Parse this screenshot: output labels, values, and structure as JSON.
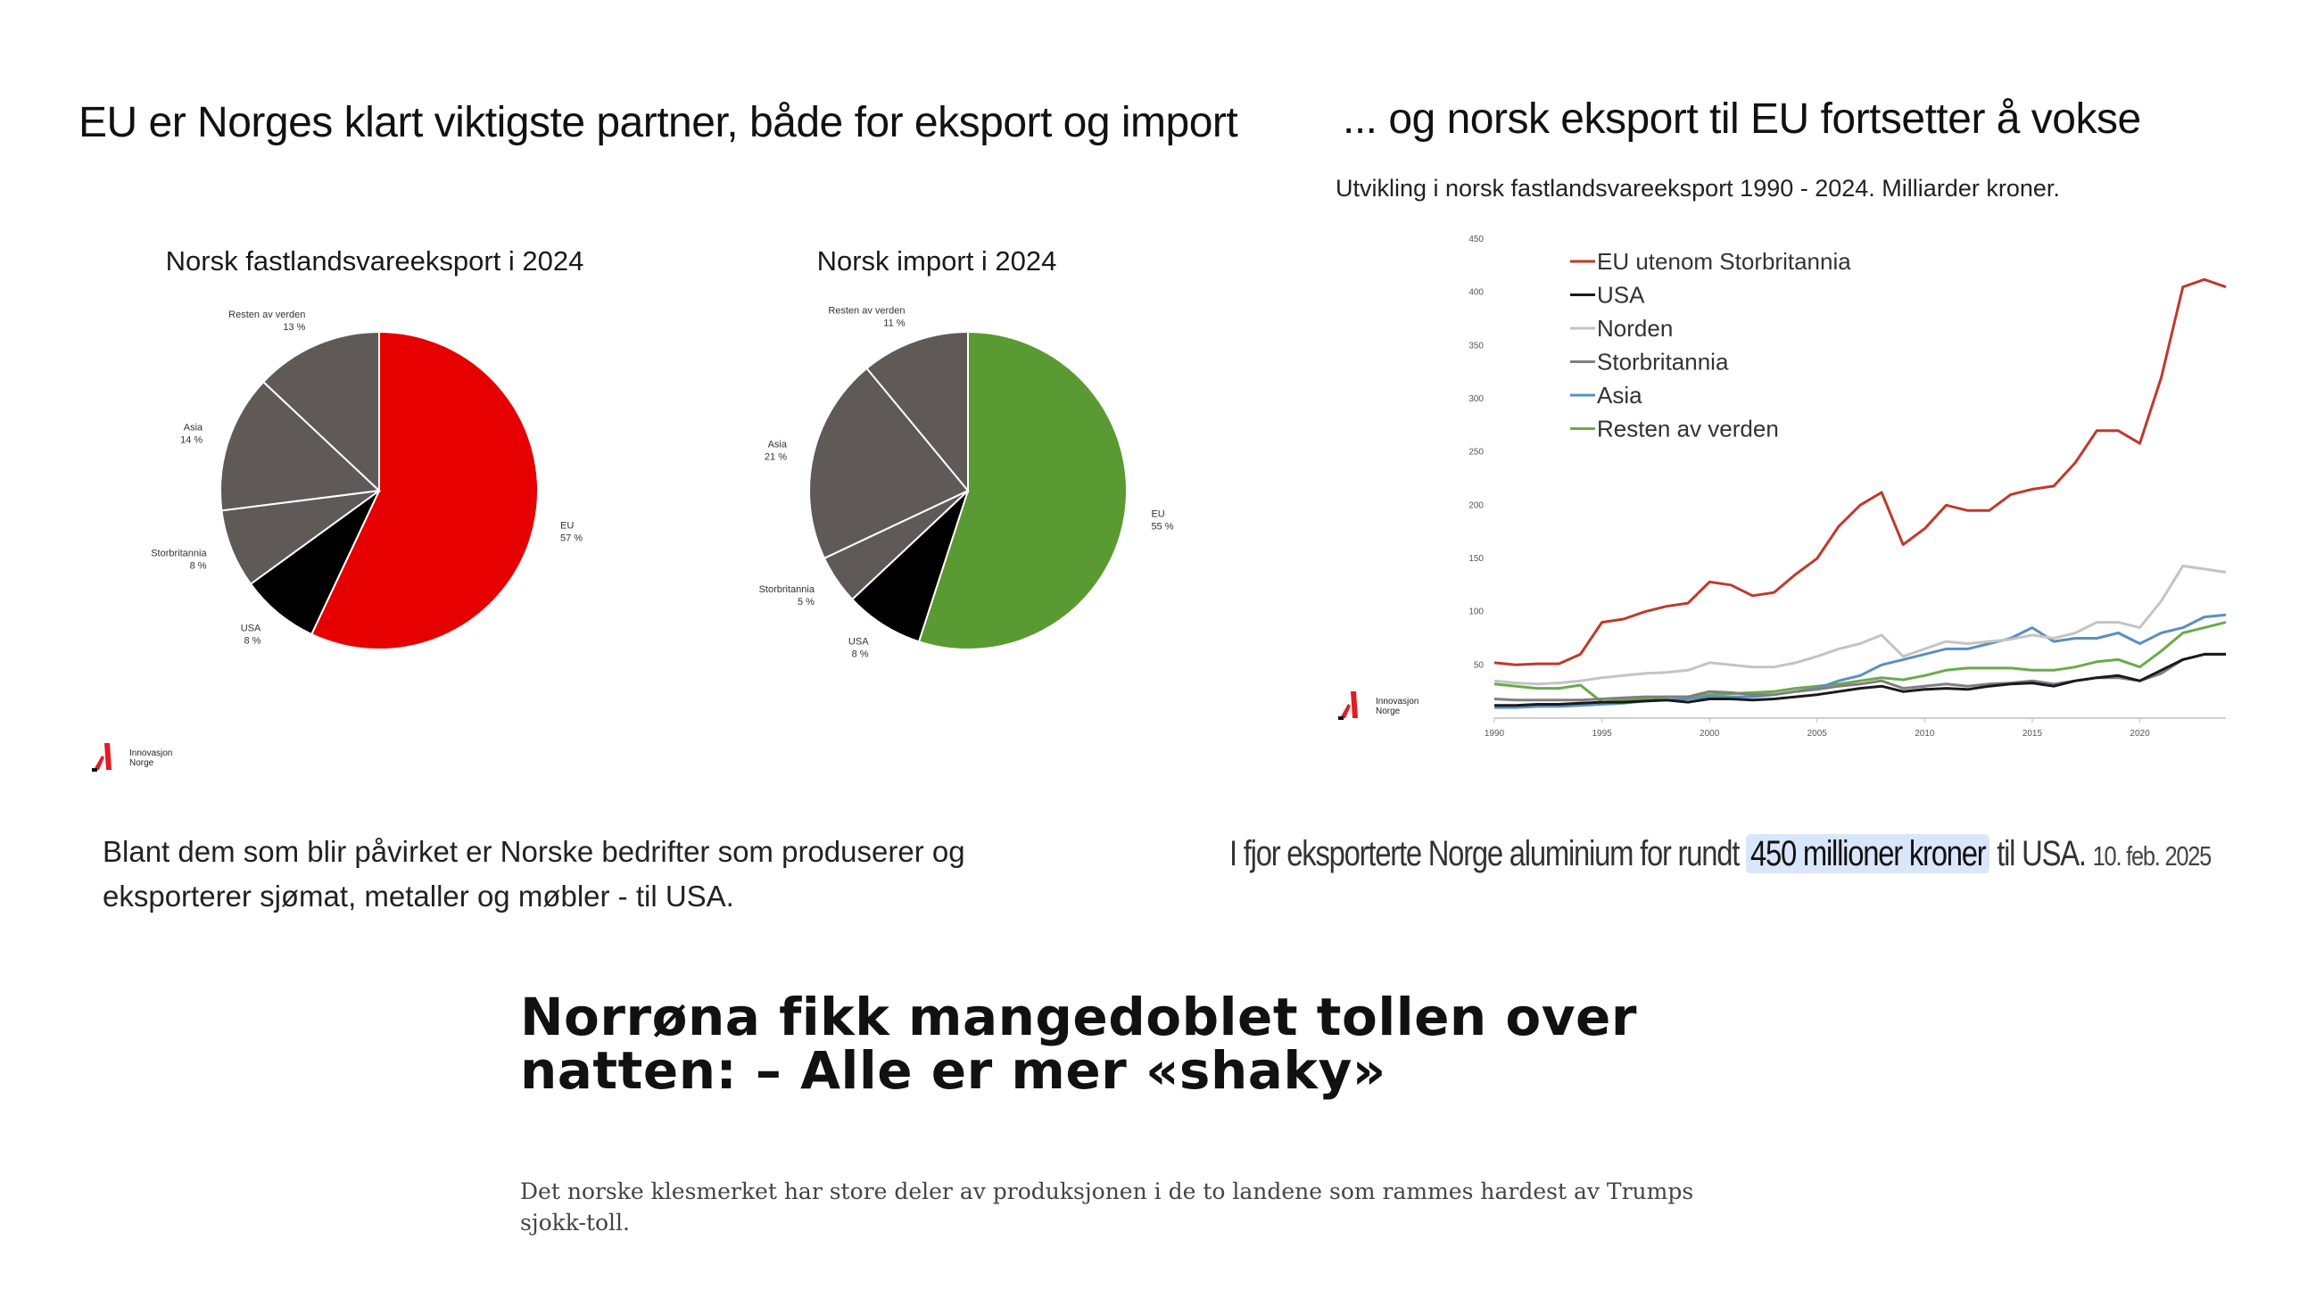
{
  "left_heading": "EU er Norges klart viktigste partner, både for eksport og import",
  "right_heading": "... og norsk eksport til EU fortsetter å vokse",
  "line_subtitle": "Utvikling i norsk fastlandsvareeksport 1990 - 2024. Milliarder kroner.",
  "logo": {
    "line1": "Innovasjon",
    "line2": "Norge",
    "accent": "#e31b23"
  },
  "quote": {
    "before": "I fjor eksporterte Norge aluminium for rundt",
    "highlight": "450 millioner kroner",
    "after": "til USA.",
    "date": "10. feb. 2025"
  },
  "body_text": "Blant dem som blir påvirket er Norske bedrifter som produserer og eksporterer sjømat, metaller og møbler - til USA.",
  "article": {
    "headline": "Norrøna fikk mangedoblet tollen over natten: – Alle er mer «shaky»",
    "lede": "Det norske klesmerket har store deler av produksjonen i de to landene som rammes hardest av Trumps sjokk-toll."
  },
  "chart_data": [
    {
      "type": "pie",
      "title": "Norsk fastlandsvareeksport i 2024",
      "slices": [
        {
          "label": "EU",
          "pct_label": "57 %",
          "value": 57,
          "color": "#e60000"
        },
        {
          "label": "USA",
          "pct_label": "8 %",
          "value": 8,
          "color": "#000000"
        },
        {
          "label": "Storbritannia",
          "pct_label": "8 %",
          "value": 8,
          "color": "#5f5a58"
        },
        {
          "label": "Asia",
          "pct_label": "14 %",
          "value": 14,
          "color": "#5f5a58"
        },
        {
          "label": "Resten av verden",
          "pct_label": "13 %",
          "value": 13,
          "color": "#5f5a58"
        }
      ]
    },
    {
      "type": "pie",
      "title": "Norsk import i 2024",
      "slices": [
        {
          "label": "EU",
          "pct_label": "55 %",
          "value": 55,
          "color": "#5a9a32"
        },
        {
          "label": "USA",
          "pct_label": "8 %",
          "value": 8,
          "color": "#000000"
        },
        {
          "label": "Storbritannia",
          "pct_label": "5 %",
          "value": 5,
          "color": "#5f5a58"
        },
        {
          "label": "Asia",
          "pct_label": "21 %",
          "value": 21,
          "color": "#5f5a58"
        },
        {
          "label": "Resten av verden",
          "pct_label": "11 %",
          "value": 11,
          "color": "#5f5a58"
        }
      ]
    },
    {
      "type": "line",
      "title": "",
      "ylim": [
        0,
        450
      ],
      "yticks": [
        50,
        100,
        150,
        200,
        250,
        300,
        350,
        400,
        450
      ],
      "xticks": [
        1990,
        1995,
        2000,
        2005,
        2010,
        2015,
        2020
      ],
      "xlim": [
        1990,
        2024
      ],
      "grid": false,
      "legend_placement": "top-left",
      "x": [
        1990,
        1991,
        1992,
        1993,
        1994,
        1995,
        1996,
        1997,
        1998,
        1999,
        2000,
        2001,
        2002,
        2003,
        2004,
        2005,
        2006,
        2007,
        2008,
        2009,
        2010,
        2011,
        2012,
        2013,
        2014,
        2015,
        2016,
        2017,
        2018,
        2019,
        2020,
        2021,
        2022,
        2023,
        2024
      ],
      "series": [
        {
          "name": "EU utenom Storbritannia",
          "color": "#c0392b",
          "values": [
            52,
            50,
            51,
            51,
            60,
            90,
            93,
            100,
            105,
            108,
            128,
            125,
            115,
            118,
            135,
            150,
            180,
            200,
            212,
            163,
            178,
            200,
            195,
            195,
            210,
            215,
            218,
            240,
            270,
            270,
            258,
            320,
            405,
            412,
            405
          ]
        },
        {
          "name": "USA",
          "color": "#1a1a1a",
          "values": [
            12,
            12,
            13,
            13,
            14,
            15,
            15,
            16,
            17,
            15,
            18,
            18,
            17,
            18,
            20,
            22,
            25,
            28,
            30,
            25,
            27,
            28,
            27,
            30,
            32,
            33,
            30,
            35,
            38,
            40,
            35,
            45,
            55,
            60,
            60
          ]
        },
        {
          "name": "Norden",
          "color": "#c4c4c4",
          "values": [
            35,
            33,
            32,
            33,
            35,
            38,
            40,
            42,
            43,
            45,
            52,
            50,
            48,
            48,
            52,
            58,
            65,
            70,
            78,
            58,
            65,
            72,
            70,
            72,
            74,
            78,
            75,
            80,
            90,
            90,
            85,
            110,
            143,
            140,
            137
          ]
        },
        {
          "name": "Storbritannia",
          "color": "#7f7f7f",
          "values": [
            18,
            17,
            17,
            17,
            17,
            18,
            19,
            20,
            20,
            20,
            25,
            24,
            22,
            22,
            25,
            27,
            30,
            32,
            35,
            28,
            30,
            32,
            30,
            32,
            33,
            35,
            32,
            35,
            38,
            38,
            35,
            42,
            55,
            60,
            60
          ]
        },
        {
          "name": "Asia",
          "color": "#5b8fbf",
          "values": [
            10,
            10,
            11,
            11,
            12,
            13,
            14,
            16,
            17,
            18,
            20,
            20,
            20,
            22,
            25,
            28,
            35,
            40,
            50,
            55,
            60,
            65,
            65,
            70,
            75,
            85,
            72,
            75,
            75,
            80,
            70,
            80,
            85,
            95,
            97
          ]
        },
        {
          "name": "Resten av verden",
          "color": "#6aaa4b",
          "values": [
            32,
            30,
            28,
            28,
            31,
            15,
            17,
            18,
            20,
            20,
            22,
            23,
            24,
            25,
            28,
            30,
            32,
            35,
            38,
            36,
            40,
            45,
            47,
            47,
            47,
            45,
            45,
            48,
            53,
            55,
            48,
            63,
            80,
            85,
            90
          ]
        }
      ]
    }
  ]
}
